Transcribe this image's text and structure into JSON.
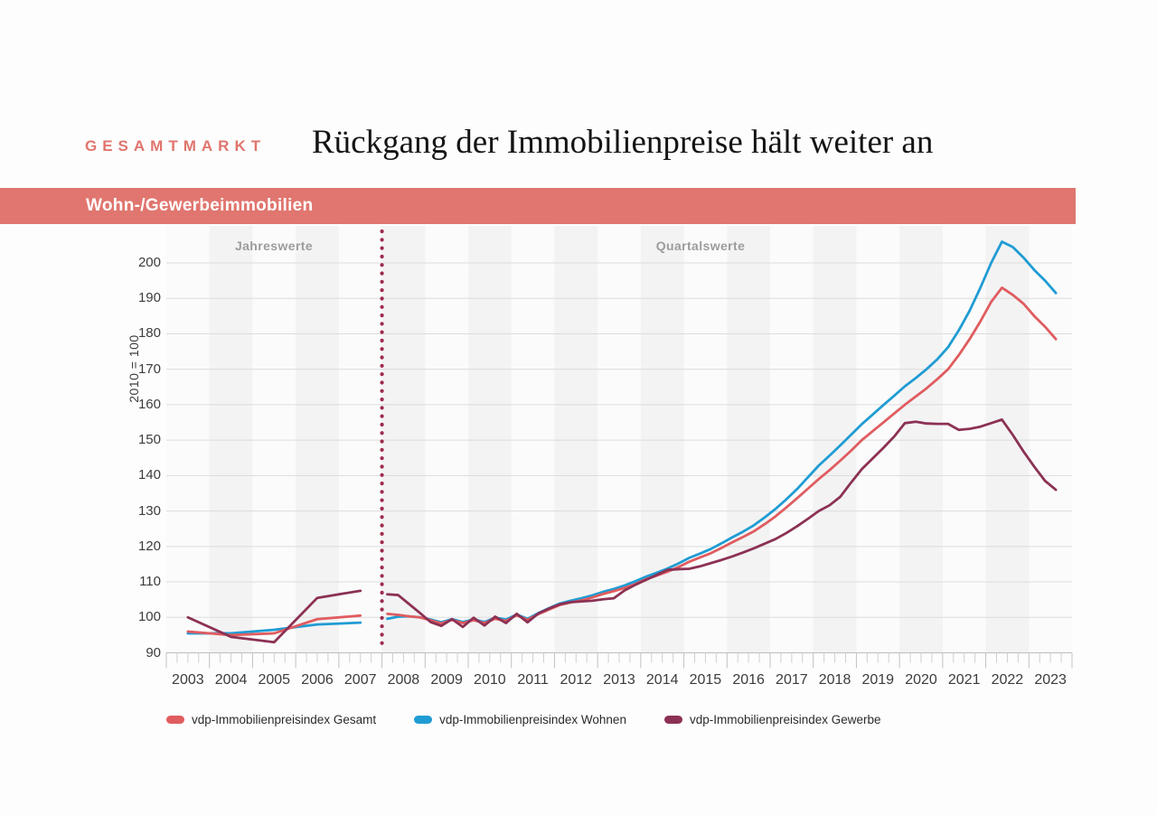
{
  "header": {
    "kicker": "GESAMTMARKT",
    "title": "Rückgang der Immobilienpreise hält weiter an"
  },
  "banner": {
    "label": "Wohn-/Gewerbeimmobilien"
  },
  "chart_data": {
    "type": "line",
    "title": "Wohn-/Gewerbeimmobilien",
    "ylabel": "2010 = 100",
    "ylim": [
      90,
      200
    ],
    "ytick_step": 10,
    "yticks": [
      90,
      100,
      110,
      120,
      130,
      140,
      150,
      160,
      170,
      180,
      190,
      200
    ],
    "years": [
      2003,
      2004,
      2005,
      2006,
      2007,
      2008,
      2009,
      2010,
      2011,
      2012,
      2013,
      2014,
      2015,
      2016,
      2017,
      2018,
      2019,
      2020,
      2021,
      2022,
      2023
    ],
    "sections": [
      {
        "label": "Jahreswerte",
        "years": [
          2003,
          2007
        ]
      },
      {
        "label": "Quartalswerte",
        "years": [
          2008,
          2023
        ]
      }
    ],
    "divider_year": 2008,
    "divider_color": "#9e2b4b",
    "grid": true,
    "legend_position": "bottom",
    "band_years_shaded": "even",
    "series": [
      {
        "name": "vdp-Immobilienpreisindex Gesamt",
        "color": "#e05c5f",
        "annual": {
          "years": [
            2003,
            2004,
            2005,
            2006,
            2007
          ],
          "values": [
            96.0,
            95.0,
            95.5,
            99.5,
            100.5
          ]
        },
        "quarterly": {
          "start": "2008-Q1",
          "end": "2023-Q3",
          "values": [
            101.0,
            100.7,
            100.3,
            100.0,
            99.2,
            98.3,
            99.3,
            98.4,
            99.2,
            98.4,
            99.6,
            99.0,
            100.6,
            99.3,
            100.9,
            102.2,
            103.5,
            104.2,
            104.8,
            105.6,
            106.6,
            107.4,
            108.3,
            109.4,
            110.8,
            111.8,
            112.9,
            114.2,
            115.7,
            116.9,
            118.1,
            119.6,
            121.2,
            122.7,
            124.3,
            126.3,
            128.5,
            131.0,
            133.6,
            136.3,
            139.0,
            141.5,
            144.2,
            147.0,
            150.0,
            152.5,
            155.0,
            157.5,
            160.0,
            162.3,
            164.6,
            167.2,
            170.0,
            174.0,
            178.5,
            183.5,
            189.0,
            193.0,
            191.0,
            188.5,
            185.0,
            182.0,
            178.5
          ]
        }
      },
      {
        "name": "vdp-Immobilienpreisindex Wohnen",
        "color": "#1f9cd3",
        "annual": {
          "years": [
            2003,
            2004,
            2005,
            2006,
            2007
          ],
          "values": [
            95.5,
            95.5,
            96.5,
            98.0,
            98.5
          ]
        },
        "quarterly": {
          "start": "2008-Q1",
          "end": "2023-Q3",
          "values": [
            99.6,
            100.2,
            100.3,
            100.0,
            99.4,
            98.6,
            99.5,
            98.7,
            99.4,
            98.7,
            99.9,
            99.4,
            100.8,
            99.6,
            101.2,
            102.6,
            103.9,
            104.7,
            105.4,
            106.2,
            107.2,
            108.0,
            109.0,
            110.2,
            111.5,
            112.6,
            113.8,
            115.2,
            116.8,
            118.0,
            119.3,
            120.9,
            122.6,
            124.2,
            126.0,
            128.2,
            130.6,
            133.3,
            136.2,
            139.5,
            142.8,
            145.6,
            148.5,
            151.5,
            154.5,
            157.2,
            159.9,
            162.5,
            165.2,
            167.5,
            170.0,
            172.8,
            176.2,
            181.0,
            186.5,
            193.0,
            200.0,
            206.0,
            204.5,
            201.5,
            198.0,
            195.0,
            191.5
          ]
        }
      },
      {
        "name": "vdp-Immobilienpreisindex Gewerbe",
        "color": "#8c3154",
        "annual": {
          "years": [
            2003,
            2004,
            2005,
            2006,
            2007
          ],
          "values": [
            100.0,
            94.5,
            93.0,
            105.5,
            107.5
          ]
        },
        "quarterly": {
          "start": "2008-Q1",
          "end": "2023-Q3",
          "values": [
            106.5,
            106.3,
            103.8,
            101.3,
            98.7,
            97.6,
            99.5,
            97.3,
            99.9,
            97.7,
            100.2,
            98.4,
            101.0,
            98.6,
            101.1,
            102.5,
            103.7,
            104.3,
            104.5,
            104.7,
            105.1,
            105.4,
            107.6,
            109.2,
            110.6,
            112.0,
            113.4,
            113.6,
            113.7,
            114.4,
            115.3,
            116.2,
            117.2,
            118.3,
            119.5,
            120.8,
            122.1,
            123.8,
            125.7,
            127.8,
            130.0,
            131.6,
            134.0,
            138.0,
            141.8,
            144.8,
            147.8,
            151.0,
            154.8,
            155.2,
            154.7,
            154.6,
            154.6,
            152.9,
            153.2,
            153.8,
            154.8,
            155.8,
            151.5,
            146.8,
            142.5,
            138.5,
            136.0
          ]
        }
      }
    ],
    "colors": {
      "banner": "#e0766f",
      "kicker": "#e0756d",
      "plot_bg": "#fbfbfb",
      "band": "#f3f3f4",
      "grid": "#dcdcdc",
      "axis": "#bdbdbd"
    }
  }
}
